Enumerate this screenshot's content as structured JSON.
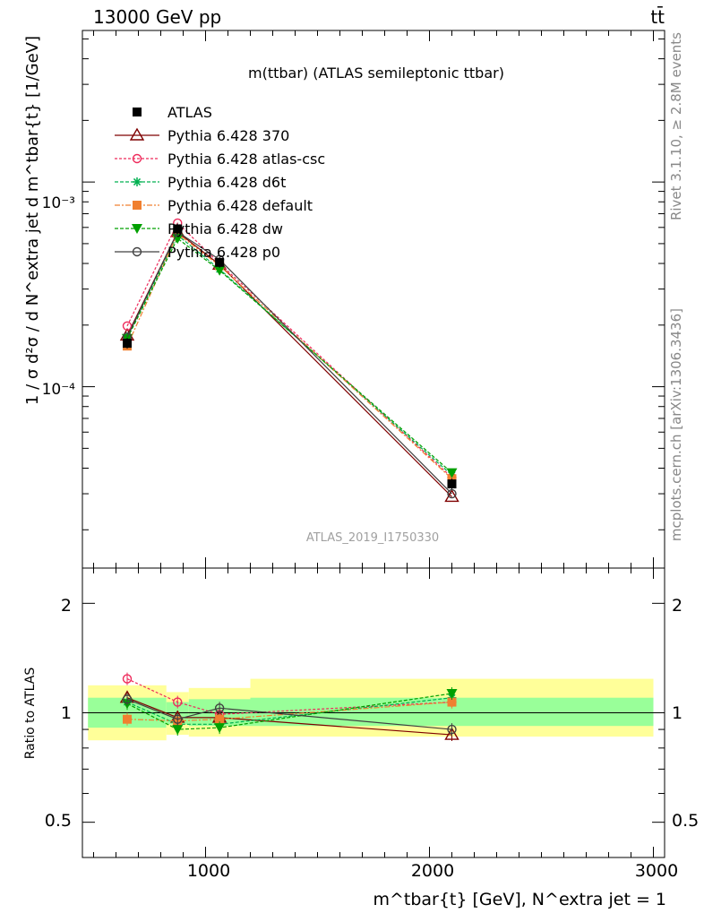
{
  "header": {
    "left": "13000 GeV pp",
    "right": "tt̄"
  },
  "side_labels": {
    "rivet": "Rivet 3.1.10, ≥ 2.8M events",
    "mcplots": "mcplots.cern.ch [arXiv:1306.3436]"
  },
  "colors": {
    "band_outer": "#ffff99",
    "band_inner": "#99ff99",
    "axis": "#000000"
  },
  "chart_data": [
    {
      "type": "line",
      "title": "m(ttbar) (ATLAS semileptonic ttbar)",
      "analysis_label": "ATLAS_2019_I1750330",
      "ylabel": "1 / σ d²σ / d N^extra jet d m^tbar{t} [1/GeV]",
      "yscale": "log",
      "xlim": [
        450,
        3050
      ],
      "ylim": [
        1.3e-05,
        0.0055
      ],
      "y_tick_labels": [
        "10⁻⁴",
        "10⁻³"
      ],
      "x": [
        650,
        875,
        1062.5,
        2100
      ],
      "x_bins": [
        [
          475,
          825
        ],
        [
          825,
          925
        ],
        [
          925,
          1200
        ],
        [
          1200,
          3000
        ]
      ],
      "series": [
        {
          "name": "ATLAS",
          "color": "#000000",
          "marker": "square",
          "dash": "",
          "values": [
            0.000163,
            0.00059,
            0.000405,
            3.35e-05
          ]
        },
        {
          "name": "Pythia 6.428 370",
          "color": "#7f0000",
          "marker": "triangle-open",
          "dash": "",
          "values": [
            0.000178,
            0.00057,
            0.000395,
            2.9e-05
          ]
        },
        {
          "name": "Pythia 6.428 atlas-csc",
          "color": "#ee2a5b",
          "marker": "circle-open",
          "dash": "3,2",
          "values": [
            0.000198,
            0.00063,
            0.0004,
            3.6e-05
          ]
        },
        {
          "name": "Pythia 6.428 d6t",
          "color": "#00b050",
          "marker": "star",
          "dash": "4,2",
          "values": [
            0.000175,
            0.00055,
            0.000375,
            3.7e-05
          ]
        },
        {
          "name": "Pythia 6.428 default",
          "color": "#f08030",
          "marker": "square",
          "dash": "6,2,2,2",
          "values": [
            0.000158,
            0.00056,
            0.00039,
            3.55e-05
          ]
        },
        {
          "name": "Pythia 6.428 dw",
          "color": "#00a000",
          "marker": "triangle-down",
          "dash": "4,2",
          "values": [
            0.000172,
            0.00053,
            0.00037,
            3.8e-05
          ]
        },
        {
          "name": "Pythia 6.428 p0",
          "color": "#404040",
          "marker": "circle-open",
          "dash": "",
          "values": [
            0.000175,
            0.00057,
            0.000418,
            3e-05
          ]
        }
      ]
    },
    {
      "type": "line",
      "ylabel": "Ratio to ATLAS",
      "xlabel": "m^tbar{t} [GeV], N^extra jet = 1",
      "yscale": "log",
      "xlim": [
        450,
        3050
      ],
      "ylim": [
        0.4,
        2.5
      ],
      "y_tick_labels": [
        "0.5",
        "1",
        "2"
      ],
      "x_tick_labels": [
        "1000",
        "2000",
        "3000"
      ],
      "band_inner": [
        [
          0.91,
          1.1
        ],
        [
          0.93,
          1.07
        ],
        [
          0.92,
          1.09
        ],
        [
          0.92,
          1.1
        ]
      ],
      "band_outer": [
        [
          0.84,
          1.19
        ],
        [
          0.87,
          1.14
        ],
        [
          0.86,
          1.17
        ],
        [
          0.86,
          1.24
        ]
      ],
      "series": [
        {
          "name": "Pythia 6.428 370",
          "values": [
            1.1,
            0.97,
            0.97,
            0.87
          ]
        },
        {
          "name": "Pythia 6.428 atlas-csc",
          "values": [
            1.24,
            1.07,
            0.99,
            1.07
          ]
        },
        {
          "name": "Pythia 6.428 d6t",
          "values": [
            1.07,
            0.93,
            0.93,
            1.1
          ]
        },
        {
          "name": "Pythia 6.428 default",
          "values": [
            0.96,
            0.95,
            0.96,
            1.07
          ]
        },
        {
          "name": "Pythia 6.428 dw",
          "values": [
            1.06,
            0.9,
            0.91,
            1.13
          ]
        },
        {
          "name": "Pythia 6.428 p0",
          "values": [
            1.09,
            0.96,
            1.03,
            0.9
          ]
        }
      ]
    }
  ]
}
